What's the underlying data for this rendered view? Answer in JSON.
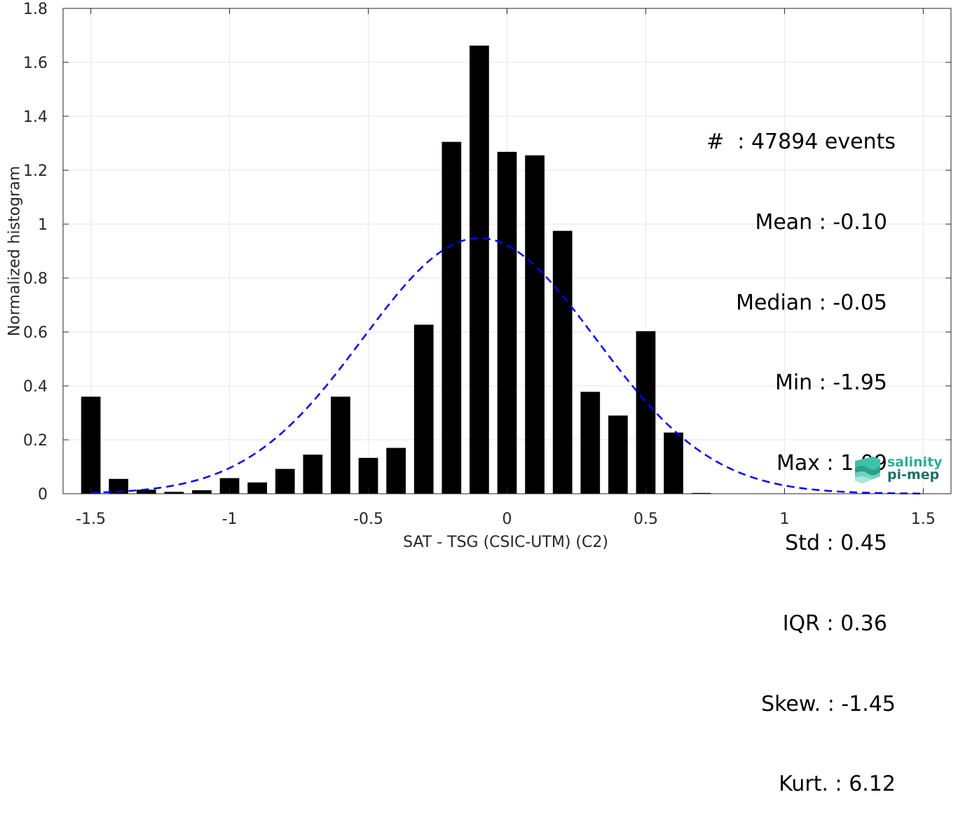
{
  "chart_data": {
    "type": "bar",
    "xlabel": "SAT - TSG (CSIC-UTM) (C2)",
    "ylabel": "Normalized histogram",
    "xlim": [
      -1.6,
      1.6
    ],
    "ylim": [
      0,
      1.8
    ],
    "xticks": [
      -1.5,
      -1,
      -0.5,
      0,
      0.5,
      1,
      1.5
    ],
    "xtick_labels": [
      "-1.5",
      "-1",
      "-0.5",
      "0",
      "0.5",
      "1",
      "1.5"
    ],
    "yticks": [
      0,
      0.2,
      0.4,
      0.6,
      0.8,
      1,
      1.2,
      1.4,
      1.6,
      1.8
    ],
    "ytick_labels": [
      "0",
      "0.2",
      "0.4",
      "0.6",
      "0.8",
      "1",
      "1.2",
      "1.4",
      "1.6",
      "1.8"
    ],
    "grid": true,
    "bar_width": 0.07,
    "bar_color": "#000000",
    "bins": [
      {
        "x": -1.5,
        "y": 0.36
      },
      {
        "x": -1.4,
        "y": 0.055
      },
      {
        "x": -1.3,
        "y": 0.015
      },
      {
        "x": -1.2,
        "y": 0.007
      },
      {
        "x": -1.1,
        "y": 0.013
      },
      {
        "x": -1.0,
        "y": 0.058
      },
      {
        "x": -0.9,
        "y": 0.042
      },
      {
        "x": -0.8,
        "y": 0.092
      },
      {
        "x": -0.7,
        "y": 0.145
      },
      {
        "x": -0.6,
        "y": 0.36
      },
      {
        "x": -0.5,
        "y": 0.133
      },
      {
        "x": -0.4,
        "y": 0.17
      },
      {
        "x": -0.3,
        "y": 0.627
      },
      {
        "x": -0.2,
        "y": 1.305
      },
      {
        "x": -0.1,
        "y": 1.662
      },
      {
        "x": 0.0,
        "y": 1.268
      },
      {
        "x": 0.1,
        "y": 1.255
      },
      {
        "x": 0.2,
        "y": 0.975
      },
      {
        "x": 0.3,
        "y": 0.378
      },
      {
        "x": 0.4,
        "y": 0.29
      },
      {
        "x": 0.5,
        "y": 0.603
      },
      {
        "x": 0.6,
        "y": 0.227
      },
      {
        "x": 0.7,
        "y": 0.003
      }
    ],
    "fit": {
      "type": "gaussian",
      "mean": -0.1,
      "std": 0.42,
      "peak": 0.948,
      "x_range": [
        -1.5,
        1.5
      ],
      "color": "#0000ee",
      "style": "dashed"
    }
  },
  "stats": [
    "#  : 47894 events",
    "Mean : -0.10",
    "Median : -0.05",
    "Min : -1.95",
    "Max : 1.09",
    "Std : 0.45",
    "IQR : 0.36",
    "Skew. : -1.45",
    "Kurt. : 6.12"
  ],
  "logo": {
    "line1": "salinity",
    "line2": "pi-mep",
    "colors": [
      "#2aae9a",
      "#1f6f66"
    ]
  }
}
